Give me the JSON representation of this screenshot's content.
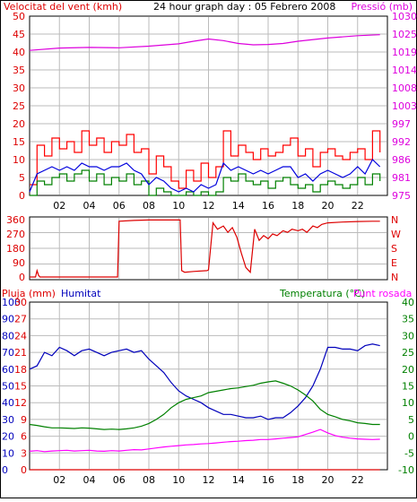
{
  "colors": {
    "wind_gust": "#ff0000",
    "wind_avg": "#0000dd",
    "wind_low": "#008000",
    "pressure": "#dd00dd",
    "direction": "#dd0000",
    "rain": "#dd0000",
    "humidity": "#0000bb",
    "temperature": "#008000",
    "dewpoint": "#ff00ff",
    "frame": "#000000",
    "grid": "#bbbbbb"
  },
  "x_tick_labels": [
    "02",
    "04",
    "06",
    "08",
    "10",
    "12",
    "14",
    "16",
    "18",
    "20",
    "22"
  ],
  "chart_data": [
    {
      "type": "line",
      "title": "24 hour graph day : 05 Febrero 2008",
      "ylabel": "Velocitat del vent (kmh)",
      "y2label": "Pressió (mb)",
      "ylim": [
        0,
        50
      ],
      "y2lim": [
        975,
        1030
      ],
      "y_ticks": [
        "0",
        "5",
        "10",
        "15",
        "20",
        "25",
        "30",
        "35",
        "40",
        "45",
        "50"
      ],
      "y2_ticks": [
        "975",
        "981",
        "986",
        "992",
        "997",
        "1003",
        "1008",
        "1014",
        "1019",
        "1025",
        "1030"
      ],
      "xlim": [
        0,
        24
      ],
      "series": [
        {
          "key": "pressure",
          "axis": "right",
          "x": [
            0,
            2,
            4,
            6,
            8,
            10,
            11,
            12,
            13,
            14,
            15,
            16,
            17,
            18,
            20,
            22,
            23.5
          ],
          "values": [
            1019.5,
            1020.2,
            1020.4,
            1020.3,
            1020.8,
            1021.5,
            1022.3,
            1023.0,
            1022.5,
            1021.6,
            1021.2,
            1021.3,
            1021.6,
            1022.3,
            1023.3,
            1024.0,
            1024.3
          ]
        },
        {
          "key": "wind_gust",
          "axis": "left",
          "x": [
            0,
            0.5,
            1,
            1.5,
            2,
            2.5,
            3,
            3.5,
            4,
            4.5,
            5,
            5.5,
            6,
            6.5,
            7,
            7.5,
            8,
            8.5,
            9,
            9.5,
            10,
            10.5,
            11,
            11.5,
            12,
            12.5,
            13,
            13.5,
            14,
            14.5,
            15,
            15.5,
            16,
            16.5,
            17,
            17.5,
            18,
            18.5,
            19,
            19.5,
            20,
            20.5,
            21,
            21.5,
            22,
            22.5,
            23,
            23.5
          ],
          "values": [
            3,
            14,
            11,
            16,
            13,
            15,
            12,
            18,
            14,
            16,
            12,
            15,
            14,
            17,
            12,
            13,
            6,
            11,
            8,
            4,
            2,
            7,
            4,
            9,
            5,
            8,
            18,
            11,
            14,
            12,
            10,
            13,
            11,
            12,
            14,
            16,
            11,
            13,
            8,
            12,
            13,
            11,
            10,
            12,
            13,
            10,
            18,
            12
          ]
        },
        {
          "key": "wind_avg",
          "axis": "left",
          "x": [
            0,
            0.5,
            1,
            1.5,
            2,
            2.5,
            3,
            3.5,
            4,
            4.5,
            5,
            5.5,
            6,
            6.5,
            7,
            7.5,
            8,
            8.5,
            9,
            9.5,
            10,
            10.5,
            11,
            11.5,
            12,
            12.5,
            13,
            13.5,
            14,
            14.5,
            15,
            15.5,
            16,
            16.5,
            17,
            17.5,
            18,
            18.5,
            19,
            19.5,
            20,
            20.5,
            21,
            21.5,
            22,
            22.5,
            23,
            23.5
          ],
          "values": [
            1,
            6,
            7,
            8,
            7,
            8,
            7,
            9,
            8,
            8,
            7,
            8,
            8,
            9,
            7,
            6,
            3,
            5,
            4,
            2,
            1,
            2,
            1,
            3,
            2,
            3,
            9,
            7,
            8,
            7,
            6,
            7,
            6,
            7,
            8,
            8,
            5,
            6,
            4,
            6,
            7,
            6,
            5,
            6,
            8,
            6,
            10,
            8
          ]
        },
        {
          "key": "wind_low",
          "axis": "left",
          "x": [
            0,
            0.5,
            1,
            1.5,
            2,
            2.5,
            3,
            3.5,
            4,
            4.5,
            5,
            5.5,
            6,
            6.5,
            7,
            7.5,
            8,
            8.5,
            9,
            9.5,
            10,
            10.5,
            11,
            11.5,
            12,
            12.5,
            13,
            13.5,
            14,
            14.5,
            15,
            15.5,
            16,
            16.5,
            17,
            17.5,
            18,
            18.5,
            19,
            19.5,
            20,
            20.5,
            21,
            21.5,
            22,
            22.5,
            23,
            23.5
          ],
          "values": [
            0,
            4,
            3,
            5,
            6,
            4,
            6,
            7,
            4,
            6,
            3,
            5,
            4,
            6,
            3,
            4,
            0,
            2,
            1,
            0,
            0,
            1,
            0,
            1,
            0,
            1,
            5,
            4,
            6,
            4,
            3,
            4,
            2,
            4,
            5,
            3,
            2,
            3,
            1,
            3,
            4,
            3,
            2,
            3,
            5,
            3,
            6,
            4
          ]
        }
      ]
    },
    {
      "type": "line",
      "ylim": [
        0,
        360
      ],
      "y_ticks": [
        "0",
        "90",
        "180",
        "270",
        "360"
      ],
      "y2_ticks": [
        "N",
        "E",
        "S",
        "W",
        "N"
      ],
      "xlim": [
        0,
        24
      ],
      "series": [
        {
          "key": "direction",
          "axis": "left",
          "x": [
            0,
            0.4,
            0.5,
            0.6,
            0.7,
            5.9,
            6.0,
            7,
            8,
            9,
            10.1,
            10.2,
            10.4,
            11,
            11.9,
            12.0,
            12.3,
            12.6,
            13,
            13.3,
            13.6,
            13.9,
            14.2,
            14.5,
            14.8,
            15.1,
            15.4,
            15.7,
            16.0,
            16.3,
            16.6,
            17,
            17.3,
            17.6,
            18,
            18.3,
            18.6,
            19,
            19.3,
            19.6,
            20,
            21,
            22,
            23,
            23.5
          ],
          "values": [
            0,
            0,
            40,
            10,
            0,
            0,
            350,
            355,
            358,
            358,
            358,
            40,
            30,
            35,
            40,
            45,
            340,
            300,
            320,
            280,
            310,
            250,
            150,
            60,
            30,
            300,
            230,
            260,
            240,
            270,
            260,
            290,
            280,
            300,
            290,
            300,
            280,
            320,
            310,
            330,
            340,
            345,
            348,
            350,
            350
          ]
        }
      ]
    },
    {
      "type": "line",
      "ylabel": "Pluja (mm)",
      "ylabel2": "Humitat",
      "y2label": "Temperatura (°C)",
      "y2label2": "Punt rosada",
      "ylim_humidity": [
        0,
        100
      ],
      "ylim_rain": [
        0,
        30
      ],
      "y2lim": [
        -10,
        40
      ],
      "humidity_ticks": [
        "0",
        "10",
        "20",
        "30",
        "40",
        "50",
        "60",
        "70",
        "80",
        "90",
        "100"
      ],
      "rain_ticks": [
        "0",
        "3",
        "6",
        "9",
        "12",
        "15",
        "18",
        "21",
        "24",
        "27",
        "30"
      ],
      "temp_ticks": [
        "-10",
        "-5",
        "0",
        "5",
        "10",
        "15",
        "20",
        "25",
        "30",
        "35",
        "40"
      ],
      "xlim": [
        0,
        24
      ],
      "series": [
        {
          "key": "humidity",
          "axis": "humidity",
          "x": [
            0,
            0.5,
            1,
            1.5,
            2,
            2.5,
            3,
            3.5,
            4,
            4.5,
            5,
            5.5,
            6,
            6.5,
            7,
            7.5,
            8,
            8.5,
            9,
            9.5,
            10,
            10.5,
            11,
            11.5,
            12,
            12.5,
            13,
            13.5,
            14,
            14.5,
            15,
            15.5,
            16,
            16.5,
            17,
            17.5,
            18,
            18.5,
            19,
            19.5,
            20,
            20.5,
            21,
            21.5,
            22,
            22.5,
            23,
            23.5
          ],
          "values": [
            60,
            62,
            70,
            68,
            73,
            71,
            68,
            71,
            72,
            70,
            68,
            70,
            71,
            72,
            70,
            71,
            66,
            62,
            58,
            52,
            47,
            44,
            42,
            40,
            37,
            35,
            33,
            33,
            32,
            31,
            31,
            32,
            30,
            31,
            31,
            34,
            38,
            43,
            50,
            60,
            73,
            73,
            72,
            72,
            71,
            74,
            75,
            74
          ]
        },
        {
          "key": "temperature",
          "axis": "temp",
          "x": [
            0,
            0.5,
            1,
            1.5,
            2,
            2.5,
            3,
            3.5,
            4,
            4.5,
            5,
            5.5,
            6,
            6.5,
            7,
            7.5,
            8,
            8.5,
            9,
            9.5,
            10,
            10.5,
            11,
            11.5,
            12,
            12.5,
            13,
            13.5,
            14,
            14.5,
            15,
            15.5,
            16,
            16.5,
            17,
            17.5,
            18,
            18.5,
            19,
            19.5,
            20,
            20.5,
            21,
            21.5,
            22,
            22.5,
            23,
            23.5
          ],
          "values": [
            3.5,
            3.2,
            2.8,
            2.5,
            2.5,
            2.4,
            2.3,
            2.5,
            2.4,
            2.2,
            2.0,
            2.1,
            2.0,
            2.2,
            2.5,
            3.0,
            3.8,
            5.0,
            6.5,
            8.5,
            10.0,
            11.0,
            11.5,
            12.0,
            13.0,
            13.4,
            13.8,
            14.2,
            14.4,
            14.8,
            15.2,
            15.8,
            16.2,
            16.5,
            15.8,
            15.0,
            13.8,
            12.3,
            10.5,
            8.0,
            6.5,
            5.8,
            5.0,
            4.6,
            4.0,
            3.8,
            3.5,
            3.5
          ]
        },
        {
          "key": "dewpoint",
          "axis": "temp",
          "x": [
            0,
            0.5,
            1,
            1.5,
            2,
            2.5,
            3,
            3.5,
            4,
            4.5,
            5,
            5.5,
            6,
            6.5,
            7,
            7.5,
            8,
            8.5,
            9,
            9.5,
            10,
            10.5,
            11,
            11.5,
            12,
            12.5,
            13,
            13.5,
            14,
            14.5,
            15,
            15.5,
            16,
            16.5,
            17,
            17.5,
            18,
            18.5,
            19,
            19.5,
            20,
            20.5,
            21,
            21.5,
            22,
            22.5,
            23,
            23.5
          ],
          "values": [
            -4.5,
            -4.3,
            -4.6,
            -4.4,
            -4.3,
            -4.2,
            -4.4,
            -4.3,
            -4.2,
            -4.4,
            -4.5,
            -4.3,
            -4.4,
            -4.2,
            -4.0,
            -4.1,
            -3.8,
            -3.5,
            -3.2,
            -3.0,
            -2.8,
            -2.6,
            -2.5,
            -2.3,
            -2.2,
            -2.0,
            -1.8,
            -1.6,
            -1.5,
            -1.3,
            -1.2,
            -1.0,
            -1.0,
            -0.8,
            -0.6,
            -0.4,
            -0.2,
            0.5,
            1.2,
            2.0,
            1.0,
            0.2,
            -0.3,
            -0.6,
            -0.8,
            -0.9,
            -1.0,
            -0.9
          ]
        },
        {
          "key": "rain",
          "axis": "rain",
          "x": [
            0,
            23.5
          ],
          "values": [
            0,
            0
          ]
        }
      ]
    }
  ]
}
